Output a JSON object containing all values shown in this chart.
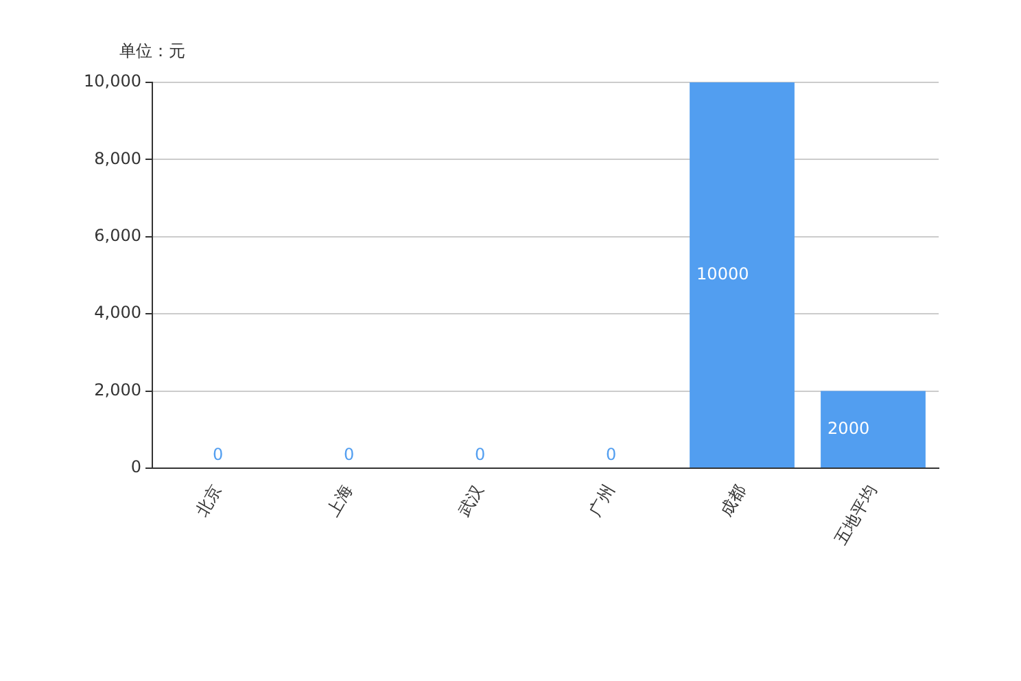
{
  "chart_data": {
    "type": "bar",
    "ylabel": "单位：元",
    "categories": [
      "北京",
      "上海",
      "武汉",
      "广州",
      "成都",
      "五地平均"
    ],
    "values": [
      0,
      0,
      0,
      0,
      10000,
      2000
    ],
    "color": "#529ef0",
    "ylim": [
      0,
      10000
    ],
    "yticks": [
      0,
      {
        "value": 2000,
        "label": "2,000"
      },
      {
        "value": 4000,
        "label": "4,000"
      },
      {
        "value": 6000,
        "label": "6,000"
      },
      {
        "value": 8000,
        "label": "8,000"
      },
      {
        "value": 10000,
        "label": "10,000"
      }
    ],
    "grid": "y",
    "data_labels": true,
    "legend": false
  }
}
